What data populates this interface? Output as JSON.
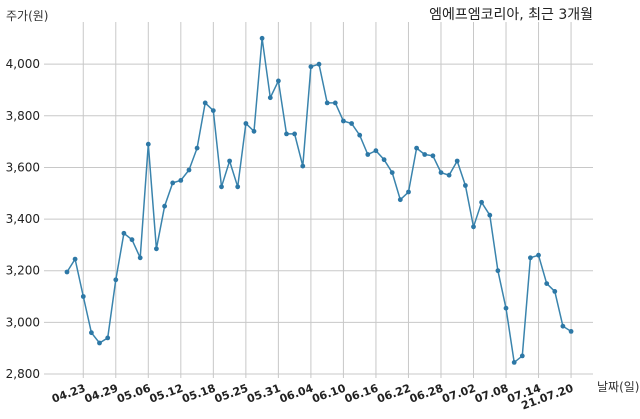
{
  "chart_data": {
    "type": "line",
    "title": "엠에프엠코리아, 최근 3개월",
    "ylabel": "주가(원)",
    "xlabel": "날짜(일)",
    "ylim": [
      2800,
      4100
    ],
    "yticks": [
      2800,
      3000,
      3200,
      3400,
      3600,
      3800,
      4000
    ],
    "ytick_labels": [
      "2,800",
      "3,000",
      "3,200",
      "3,400",
      "3,600",
      "3,800",
      "4,000"
    ],
    "grid": true,
    "x_tick_labels": [
      "04.23",
      "04.29",
      "05.06",
      "05.12",
      "05.18",
      "05.25",
      "05.31",
      "06.04",
      "06.10",
      "06.16",
      "06.22",
      "06.28",
      "07.02",
      "07.08",
      "07.14",
      "21.07.20"
    ],
    "x_tick_index": [
      2,
      6,
      10,
      14,
      18,
      22,
      26,
      30,
      34,
      38,
      42,
      46,
      50,
      54,
      58,
      62
    ],
    "series": [
      {
        "values": [
          3195,
          3245,
          3100,
          2960,
          2920,
          2940,
          3165,
          3345,
          3320,
          3250,
          3690,
          3285,
          3450,
          3540,
          3550,
          3590,
          3675,
          3850,
          3820,
          3525,
          3625,
          3525,
          3770,
          3740,
          4100,
          3870,
          3935,
          3730,
          3730,
          3605,
          3990,
          4000,
          3850,
          3850,
          3780,
          3770,
          3725,
          3650,
          3665,
          3630,
          3580,
          3475,
          3505,
          3675,
          3650,
          3645,
          3580,
          3570,
          3625,
          3530,
          3370,
          3465,
          3415,
          3200,
          3055,
          2845,
          2870,
          3250,
          3260,
          3150,
          3120,
          2985,
          2965
        ]
      }
    ]
  }
}
